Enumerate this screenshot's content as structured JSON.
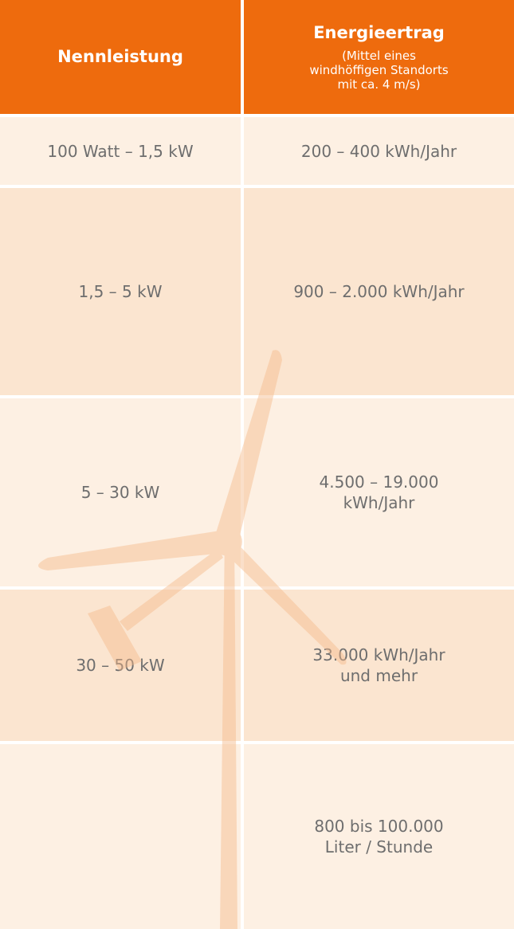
{
  "table": {
    "header": {
      "power": "Nennleistung",
      "yield": "Energieertrag",
      "yield_note": [
        "(Mittel eines",
        "windhöffigen Standorts",
        "mit ca. 4 m/s)"
      ]
    },
    "rows": [
      {
        "power": "100 Watt – 1,5 kW",
        "yield": [
          "200 – 400 kWh/Jahr"
        ]
      },
      {
        "power": "1,5 – 5 kW",
        "yield": [
          "900 – 2.000 kWh/Jahr"
        ]
      },
      {
        "power": "5 – 30 kW",
        "yield": [
          "4.500 – 19.000",
          "kWh/Jahr"
        ]
      },
      {
        "power": "30 – 50 kW",
        "yield": [
          "33.000 kWh/Jahr",
          "und mehr"
        ]
      },
      {
        "yield": [
          "800 bis 100.000",
          "Liter / Stunde"
        ]
      }
    ]
  }
}
